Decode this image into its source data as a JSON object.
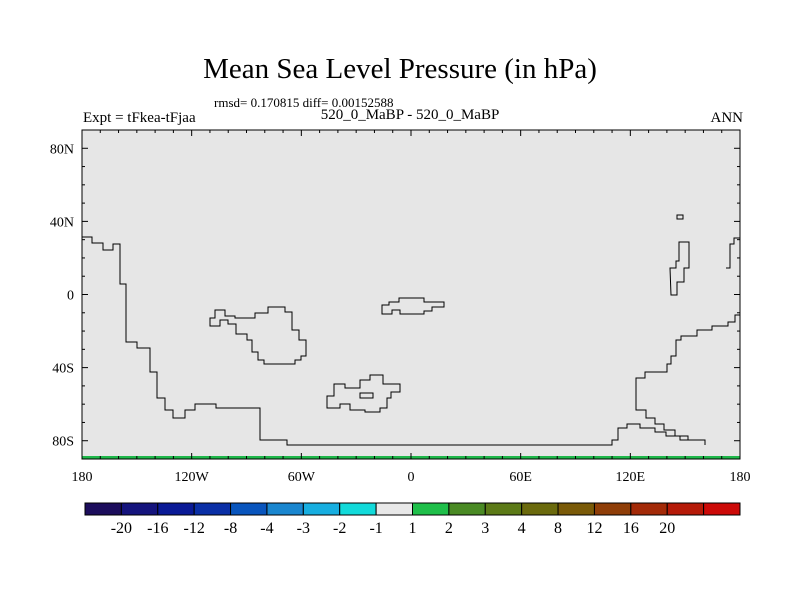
{
  "title": "Mean Sea Level Pressure (in hPa)",
  "stats_line": "rmsd= 0.170815 diff= 0.00152588",
  "left_label": "Expt = tFkea-tFjaa",
  "center_label": "520_0_MaBP - 520_0_MaBP",
  "right_label": "ANN",
  "map": {
    "fill_color": "#e6e6e6",
    "outline_color": "#000000",
    "bottom_strip_color": "#1fb84a",
    "lon_ticks": [
      {
        "lon": -180,
        "label": "180"
      },
      {
        "lon": -120,
        "label": "120W"
      },
      {
        "lon": -60,
        "label": "60W"
      },
      {
        "lon": 0,
        "label": "0"
      },
      {
        "lon": 60,
        "label": "60E"
      },
      {
        "lon": 120,
        "label": "120E"
      },
      {
        "lon": 180,
        "label": "180"
      }
    ],
    "lat_ticks": [
      {
        "lat": 80,
        "label": "80N"
      },
      {
        "lat": 40,
        "label": "40N"
      },
      {
        "lat": 0,
        "label": "0"
      },
      {
        "lat": -40,
        "label": "40S"
      },
      {
        "lat": -80,
        "label": "80S"
      }
    ],
    "lon_range": [
      -180,
      180
    ],
    "lat_range": [
      -90,
      90
    ]
  },
  "colorbar": {
    "colors": [
      "#1c0d5c",
      "#15147d",
      "#0a1a96",
      "#0a2fa6",
      "#0955bd",
      "#1a86cf",
      "#17aee0",
      "#12dada",
      "#e8e8e8",
      "#1fbf4a",
      "#4a8a24",
      "#5c7a17",
      "#6b6a0d",
      "#7a5a08",
      "#8f3e08",
      "#a32a08",
      "#b51a08",
      "#cc0a08"
    ],
    "labels": [
      "-20",
      "-16",
      "-12",
      "-8",
      "-4",
      "-3",
      "-2",
      "-1",
      "1",
      "2",
      "3",
      "4",
      "8",
      "12",
      "16",
      "20"
    ]
  }
}
